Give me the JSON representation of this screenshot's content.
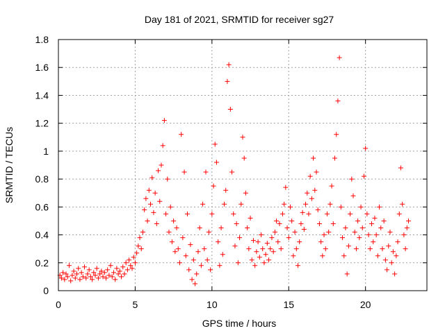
{
  "chart_data": {
    "type": "scatter",
    "title": "Day 181 of 2021, SRMTID for receiver sg27",
    "xlabel": "GPS time / hours",
    "ylabel": "SRMTID / TECUs",
    "xlim": [
      0,
      24
    ],
    "ylim": [
      0,
      1.8
    ],
    "xticks": [
      0,
      5,
      10,
      15,
      20
    ],
    "xtick_labels": [
      "0",
      "5",
      "10",
      "15",
      "20"
    ],
    "yticks": [
      0,
      0.2,
      0.4,
      0.6,
      0.8,
      1.0,
      1.2,
      1.4,
      1.6,
      1.8
    ],
    "ytick_labels": [
      "0",
      "0.2",
      "0.4",
      "0.6",
      "0.8",
      "1",
      "1.2",
      "1.4",
      "1.6",
      "1.8"
    ],
    "grid": true,
    "color": "#ff0000",
    "marker": "plus",
    "series": [
      {
        "name": "SRMTID",
        "points": [
          [
            0.1,
            0.11
          ],
          [
            0.2,
            0.09
          ],
          [
            0.3,
            0.13
          ],
          [
            0.4,
            0.08
          ],
          [
            0.5,
            0.12
          ],
          [
            0.6,
            0.1
          ],
          [
            0.7,
            0.18
          ],
          [
            0.8,
            0.07
          ],
          [
            0.9,
            0.11
          ],
          [
            1.0,
            0.14
          ],
          [
            1.1,
            0.09
          ],
          [
            1.2,
            0.12
          ],
          [
            1.3,
            0.16
          ],
          [
            1.4,
            0.08
          ],
          [
            1.5,
            0.13
          ],
          [
            1.6,
            0.1
          ],
          [
            1.7,
            0.17
          ],
          [
            1.8,
            0.09
          ],
          [
            1.9,
            0.12
          ],
          [
            2.0,
            0.15
          ],
          [
            2.1,
            0.1
          ],
          [
            2.2,
            0.08
          ],
          [
            2.3,
            0.13
          ],
          [
            2.4,
            0.11
          ],
          [
            2.5,
            0.16
          ],
          [
            2.6,
            0.09
          ],
          [
            2.7,
            0.12
          ],
          [
            2.8,
            0.14
          ],
          [
            2.9,
            0.1
          ],
          [
            3.0,
            0.13
          ],
          [
            3.1,
            0.09
          ],
          [
            3.2,
            0.15
          ],
          [
            3.3,
            0.11
          ],
          [
            3.4,
            0.18
          ],
          [
            3.5,
            0.1
          ],
          [
            3.6,
            0.13
          ],
          [
            3.7,
            0.08
          ],
          [
            3.8,
            0.16
          ],
          [
            3.9,
            0.12
          ],
          [
            4.0,
            0.14
          ],
          [
            4.1,
            0.1
          ],
          [
            4.2,
            0.17
          ],
          [
            4.3,
            0.12
          ],
          [
            4.4,
            0.2
          ],
          [
            4.5,
            0.15
          ],
          [
            4.6,
            0.22
          ],
          [
            4.7,
            0.18
          ],
          [
            4.8,
            0.16
          ],
          [
            4.9,
            0.24
          ],
          [
            5.0,
            0.2
          ],
          [
            5.1,
            0.27
          ],
          [
            5.2,
            0.32
          ],
          [
            5.3,
            0.38
          ],
          [
            5.4,
            0.3
          ],
          [
            5.5,
            0.42
          ],
          [
            5.6,
            0.58
          ],
          [
            5.7,
            0.66
          ],
          [
            5.8,
            0.5
          ],
          [
            5.9,
            0.72
          ],
          [
            6.0,
            0.62
          ],
          [
            6.1,
            0.81
          ],
          [
            6.2,
            0.56
          ],
          [
            6.3,
            0.7
          ],
          [
            6.4,
            0.48
          ],
          [
            6.5,
            0.86
          ],
          [
            6.6,
            0.64
          ],
          [
            6.7,
            0.9
          ],
          [
            6.8,
            1.04
          ],
          [
            6.9,
            1.22
          ],
          [
            7.0,
            0.55
          ],
          [
            7.1,
            0.8
          ],
          [
            7.2,
            0.42
          ],
          [
            7.3,
            0.6
          ],
          [
            7.4,
            0.35
          ],
          [
            7.5,
            0.5
          ],
          [
            7.6,
            0.28
          ],
          [
            7.7,
            0.45
          ],
          [
            7.8,
            0.3
          ],
          [
            7.9,
            0.2
          ],
          [
            8.0,
            1.12
          ],
          [
            8.1,
            0.38
          ],
          [
            8.2,
            0.85
          ],
          [
            8.3,
            0.25
          ],
          [
            8.4,
            0.55
          ],
          [
            8.5,
            0.15
          ],
          [
            8.6,
            0.33
          ],
          [
            8.7,
            0.08
          ],
          [
            8.8,
            0.22
          ],
          [
            8.9,
            0.05
          ],
          [
            9.0,
            0.12
          ],
          [
            9.1,
            0.28
          ],
          [
            9.2,
            0.45
          ],
          [
            9.3,
            0.18
          ],
          [
            9.4,
            0.62
          ],
          [
            9.5,
            0.3
          ],
          [
            9.6,
            0.85
          ],
          [
            9.7,
            0.22
          ],
          [
            9.8,
            0.42
          ],
          [
            9.9,
            0.15
          ],
          [
            10.0,
            0.55
          ],
          [
            10.1,
            0.75
          ],
          [
            10.2,
            1.05
          ],
          [
            10.3,
            0.92
          ],
          [
            10.4,
            0.35
          ],
          [
            10.5,
            0.18
          ],
          [
            10.6,
            0.45
          ],
          [
            10.7,
            0.26
          ],
          [
            10.8,
            0.62
          ],
          [
            10.9,
            0.72
          ],
          [
            11.0,
            1.5
          ],
          [
            11.1,
            1.62
          ],
          [
            11.2,
            1.3
          ],
          [
            11.3,
            0.85
          ],
          [
            11.4,
            0.55
          ],
          [
            11.5,
            0.32
          ],
          [
            11.6,
            0.48
          ],
          [
            11.7,
            0.2
          ],
          [
            11.8,
            0.38
          ],
          [
            11.9,
            0.62
          ],
          [
            12.0,
            1.1
          ],
          [
            12.1,
            0.95
          ],
          [
            12.2,
            0.7
          ],
          [
            12.3,
            0.45
          ],
          [
            12.4,
            0.3
          ],
          [
            12.5,
            0.52
          ],
          [
            12.6,
            0.22
          ],
          [
            12.7,
            0.36
          ],
          [
            12.8,
            0.18
          ],
          [
            12.9,
            0.28
          ],
          [
            13.0,
            0.35
          ],
          [
            13.1,
            0.24
          ],
          [
            13.2,
            0.4
          ],
          [
            13.3,
            0.3
          ],
          [
            13.4,
            0.2
          ],
          [
            13.5,
            0.26
          ],
          [
            13.6,
            0.34
          ],
          [
            13.7,
            0.22
          ],
          [
            13.8,
            0.3
          ],
          [
            13.9,
            0.38
          ],
          [
            14.0,
            0.28
          ],
          [
            14.1,
            0.42
          ],
          [
            14.2,
            0.5
          ],
          [
            14.3,
            0.35
          ],
          [
            14.4,
            0.48
          ],
          [
            14.5,
            0.3
          ],
          [
            14.6,
            0.55
          ],
          [
            14.7,
            0.62
          ],
          [
            14.8,
            0.74
          ],
          [
            14.9,
            0.45
          ],
          [
            15.0,
            0.38
          ],
          [
            15.1,
            0.6
          ],
          [
            15.2,
            0.5
          ],
          [
            15.3,
            0.25
          ],
          [
            15.4,
            0.42
          ],
          [
            15.5,
            0.3
          ],
          [
            15.6,
            0.18
          ],
          [
            15.7,
            0.35
          ],
          [
            15.8,
            0.48
          ],
          [
            15.9,
            0.56
          ],
          [
            16.0,
            0.44
          ],
          [
            16.1,
            0.62
          ],
          [
            16.2,
            0.7
          ],
          [
            16.3,
            0.55
          ],
          [
            16.4,
            0.82
          ],
          [
            16.5,
            0.66
          ],
          [
            16.6,
            0.95
          ],
          [
            16.7,
            0.72
          ],
          [
            16.8,
            0.85
          ],
          [
            16.9,
            0.58
          ],
          [
            17.0,
            0.48
          ],
          [
            17.1,
            0.35
          ],
          [
            17.2,
            0.25
          ],
          [
            17.3,
            0.4
          ],
          [
            17.4,
            0.3
          ],
          [
            17.5,
            0.55
          ],
          [
            17.6,
            0.42
          ],
          [
            17.7,
            0.62
          ],
          [
            17.8,
            0.75
          ],
          [
            17.9,
            0.48
          ],
          [
            18.0,
            0.95
          ],
          [
            18.1,
            1.12
          ],
          [
            18.2,
            1.36
          ],
          [
            18.3,
            1.67
          ],
          [
            18.4,
            0.6
          ],
          [
            18.5,
            0.38
          ],
          [
            18.6,
            0.25
          ],
          [
            18.7,
            0.45
          ],
          [
            18.8,
            0.12
          ],
          [
            18.9,
            0.32
          ],
          [
            19.0,
            0.55
          ],
          [
            19.1,
            0.8
          ],
          [
            19.2,
            0.68
          ],
          [
            19.3,
            0.42
          ],
          [
            19.4,
            0.3
          ],
          [
            19.5,
            0.5
          ],
          [
            19.6,
            0.38
          ],
          [
            19.7,
            0.6
          ],
          [
            19.8,
            0.45
          ],
          [
            19.9,
            0.82
          ],
          [
            20.0,
            1.02
          ],
          [
            20.1,
            0.55
          ],
          [
            20.2,
            0.4
          ],
          [
            20.3,
            0.3
          ],
          [
            20.4,
            0.48
          ],
          [
            20.5,
            0.35
          ],
          [
            20.6,
            0.52
          ],
          [
            20.7,
            0.4
          ],
          [
            20.8,
            0.25
          ],
          [
            20.9,
            0.6
          ],
          [
            21.0,
            0.45
          ],
          [
            21.1,
            0.3
          ],
          [
            21.2,
            0.5
          ],
          [
            21.3,
            0.22
          ],
          [
            21.4,
            0.15
          ],
          [
            21.5,
            0.32
          ],
          [
            21.6,
            0.42
          ],
          [
            21.7,
            0.2
          ],
          [
            21.8,
            0.28
          ],
          [
            21.9,
            0.12
          ],
          [
            22.0,
            0.25
          ],
          [
            22.1,
            0.35
          ],
          [
            22.2,
            0.55
          ],
          [
            22.3,
            0.88
          ],
          [
            22.4,
            0.62
          ],
          [
            22.5,
            0.4
          ],
          [
            22.6,
            0.3
          ],
          [
            22.7,
            0.45
          ],
          [
            22.8,
            0.5
          ]
        ]
      }
    ]
  }
}
